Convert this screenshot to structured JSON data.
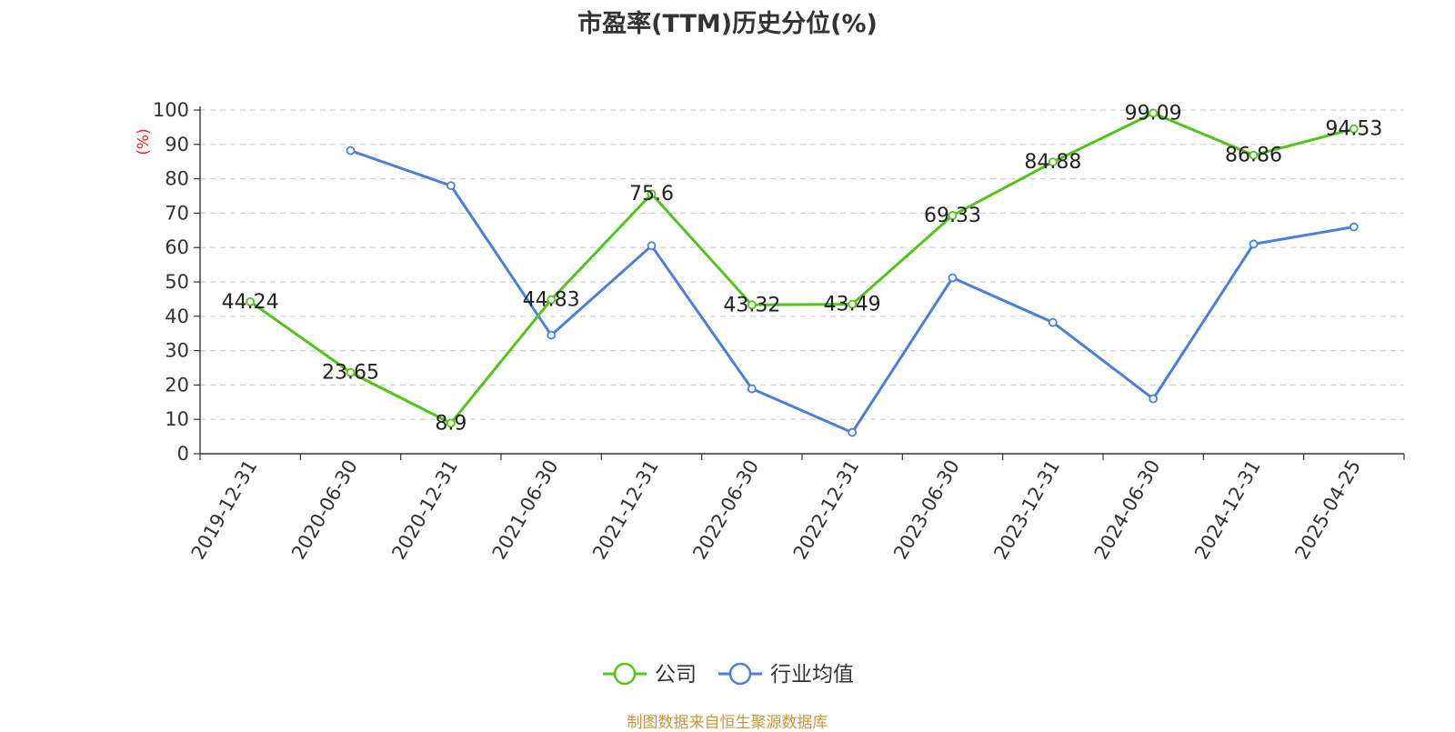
{
  "chart_data": {
    "type": "line",
    "title": "市盈率(TTM)历史分位(%)",
    "y_unit_label": "(%)",
    "categories": [
      "2019-12-31",
      "2020-06-30",
      "2020-12-31",
      "2021-06-30",
      "2021-12-31",
      "2022-06-30",
      "2022-12-31",
      "2023-06-30",
      "2023-12-31",
      "2024-06-30",
      "2024-12-31",
      "2025-04-25"
    ],
    "series": [
      {
        "name": "公司",
        "color": "#52c41a",
        "values": [
          44.24,
          23.65,
          8.9,
          44.83,
          75.6,
          43.32,
          43.49,
          69.33,
          84.88,
          99.09,
          86.86,
          94.53
        ],
        "value_labels": [
          "44.24",
          "23.65",
          "8.9",
          "44.83",
          "75.6",
          "43.32",
          "43.49",
          "69.33",
          "84.88",
          "99.09",
          "86.86",
          "94.53"
        ]
      },
      {
        "name": "行业均值",
        "color": "#4a7fdb",
        "values": [
          null,
          88.2,
          78.0,
          34.5,
          60.5,
          18.9,
          6.2,
          51.2,
          38.2,
          16.0,
          61.0,
          66.0
        ]
      }
    ],
    "yticks": [
      "0",
      "10",
      "20",
      "30",
      "40",
      "50",
      "60",
      "70",
      "80",
      "90",
      "100"
    ],
    "ylim": [
      0,
      100
    ],
    "grid": true,
    "legend_position": "bottom-center",
    "y_unit_color": "#e8221d",
    "source": "制图数据来自恒生聚源数据库"
  }
}
